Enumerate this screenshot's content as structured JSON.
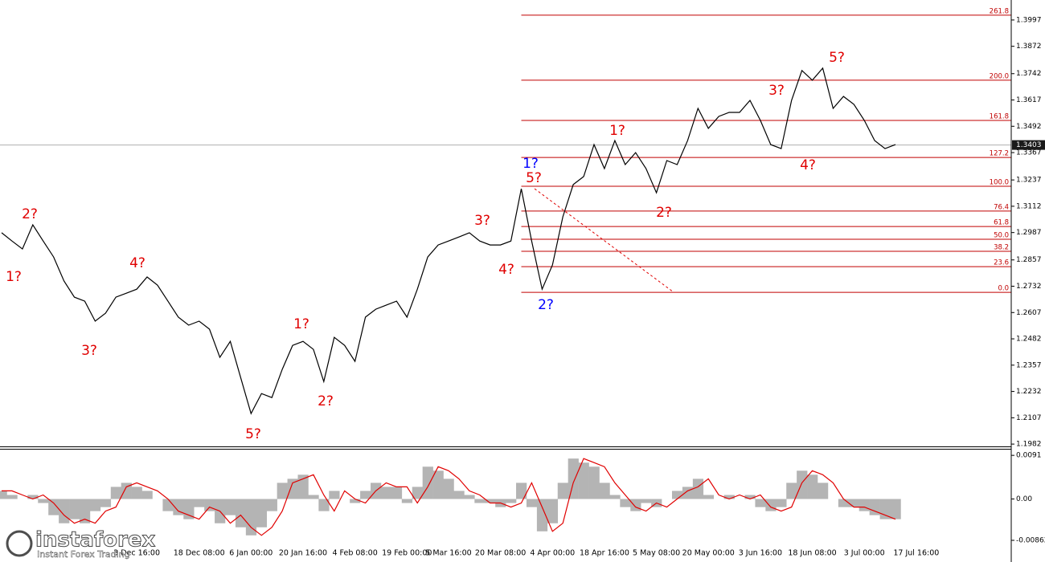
{
  "chart_data": [
    {
      "type": "line",
      "color": "#000000",
      "categories": [
        null,
        null,
        null,
        null,
        null,
        null,
        null,
        null,
        null,
        null,
        null,
        null,
        null,
        "3 Dec 16:00",
        null,
        null,
        null,
        null,
        null,
        "18 Dec 08:00",
        null,
        null,
        null,
        null,
        "6 Jan 00:00",
        null,
        null,
        null,
        null,
        "20 Jan 16:00",
        null,
        null,
        null,
        null,
        "4 Feb 08:00",
        null,
        null,
        null,
        null,
        "19 Feb 00:00",
        null,
        null,
        null,
        "5 Mar 16:00",
        null,
        null,
        null,
        null,
        "20 Mar 08:00",
        null,
        null,
        null,
        null,
        "4 Apr 00:00",
        null,
        null,
        null,
        null,
        "18 Apr 16:00",
        null,
        null,
        null,
        null,
        "5 May 08:00",
        null,
        null,
        null,
        null,
        "20 May 00:00",
        null,
        null,
        null,
        null,
        "3 Jun 16:00",
        null,
        null,
        null,
        null,
        "18 Jun 08:00",
        null,
        null,
        null,
        null,
        "3 Jul 00:00",
        null,
        null,
        null,
        null,
        "17 Jul 16:00"
      ],
      "values": [
        1.2986,
        1.2947,
        1.2909,
        1.3024,
        1.2947,
        1.2871,
        1.2757,
        1.268,
        1.2661,
        1.2566,
        1.2604,
        1.268,
        1.2699,
        1.2718,
        1.2776,
        1.2737,
        1.2661,
        1.2585,
        1.2547,
        1.2566,
        1.2528,
        1.2394,
        1.247,
        1.2298,
        1.2127,
        1.2222,
        1.2203,
        1.2337,
        1.2451,
        1.247,
        1.2432,
        1.2279,
        1.2489,
        1.2451,
        1.2375,
        1.2585,
        1.2623,
        1.2642,
        1.2661,
        1.2585,
        1.2718,
        1.2871,
        1.2928,
        1.2947,
        1.2966,
        1.2986,
        1.2947,
        1.2928,
        1.2928,
        1.2947,
        1.3195,
        1.2947,
        1.2718,
        1.2833,
        1.3062,
        1.3215,
        1.3253,
        1.3405,
        1.3291,
        1.3424,
        1.331,
        1.3367,
        1.3291,
        1.3176,
        1.3329,
        1.331,
        1.3424,
        1.3577,
        1.3482,
        1.3539,
        1.3558,
        1.3558,
        1.3615,
        1.352,
        1.3405,
        1.3386,
        1.3615,
        1.3757,
        1.3711,
        1.3768,
        1.3577,
        1.3634,
        1.3596,
        1.352,
        1.3424,
        1.3386,
        1.3405,
        null,
        null
      ],
      "ylim": [
        1.1971,
        1.4092
      ],
      "yticks": [
        1.3997,
        1.3872,
        1.3742,
        1.3617,
        1.3492,
        1.3367,
        1.3237,
        1.3112,
        1.2987,
        1.2857,
        1.2732,
        1.2607,
        1.2482,
        1.2357,
        1.2232,
        1.2107,
        1.1982
      ],
      "last_price": {
        "value": 1.3403,
        "label": "1.3403"
      },
      "levels_color": "#c00000",
      "levels": [
        {
          "label": "261.8",
          "value": 1.402
        },
        {
          "label": "200.0",
          "value": 1.3711
        },
        {
          "label": "161.8",
          "value": 1.352
        },
        {
          "label": "127.2",
          "value": 1.3344
        },
        {
          "label": "100.0",
          "value": 1.3207
        },
        {
          "label": "76.4",
          "value": 1.3089
        },
        {
          "label": "61.8",
          "value": 1.3016
        },
        {
          "label": "50.0",
          "value": 1.2955
        },
        {
          "label": "38.2",
          "value": 1.2898
        },
        {
          "label": "23.6",
          "value": 1.2825
        },
        {
          "label": "0.0",
          "value": 1.2703
        }
      ],
      "annotations": [
        {
          "text": "1?",
          "color": "#e00000"
        },
        {
          "text": "2?",
          "color": "#e00000"
        },
        {
          "text": "3?",
          "color": "#e00000"
        },
        {
          "text": "4?",
          "color": "#e00000"
        },
        {
          "text": "5?",
          "color": "#e00000"
        },
        {
          "text": "1?",
          "color": "#e00000"
        },
        {
          "text": "2?",
          "color": "#e00000"
        },
        {
          "text": "3?",
          "color": "#e00000"
        },
        {
          "text": "4?",
          "color": "#e00000"
        },
        {
          "text": "1?",
          "color": "#0000ff"
        },
        {
          "text": "5?",
          "color": "#e00000"
        },
        {
          "text": "2?",
          "color": "#0000ff"
        },
        {
          "text": "1?",
          "color": "#e00000"
        },
        {
          "text": "2?",
          "color": "#e00000"
        },
        {
          "text": "3?",
          "color": "#e00000"
        },
        {
          "text": "4?",
          "color": "#e00000"
        },
        {
          "text": "5?",
          "color": "#e00000"
        }
      ]
    },
    {
      "type": "histogram",
      "color": "#b4b4b4",
      "signal_color": "#e00000",
      "values": [
        0.00169,
        0.00084,
        0,
        0.00084,
        -0.00084,
        -0.00337,
        -0.00506,
        -0.00421,
        -0.00506,
        -0.00253,
        -0.00169,
        0.00253,
        0.00337,
        0.00253,
        0.00169,
        0,
        -0.00253,
        -0.00337,
        -0.00421,
        -0.00169,
        -0.00253,
        -0.00506,
        -0.00337,
        -0.0059,
        -0.00758,
        -0.0059,
        -0.00253,
        0.00337,
        0.00421,
        0.00506,
        0.00084,
        -0.00253,
        0.00169,
        0,
        -0.00084,
        0.00169,
        0.00337,
        0.00253,
        0.00253,
        -0.00084,
        0.00253,
        0.00674,
        0.0059,
        0.00421,
        0.00169,
        0.00084,
        -0.00084,
        -0.00084,
        -0.00169,
        -0.00084,
        0.00337,
        -0.00169,
        -0.00674,
        -0.00506,
        0.00337,
        0.00843,
        0.00758,
        0.00674,
        0.00337,
        0.00084,
        -0.00169,
        -0.00253,
        -0.00084,
        -0.00169,
        0,
        0.00169,
        0.00253,
        0.00421,
        0.00084,
        0,
        0.00084,
        0,
        0.00084,
        -0.00169,
        -0.00253,
        -0.00169,
        0.00337,
        0.0059,
        0.00506,
        0.00337,
        0,
        -0.00169,
        -0.00169,
        -0.00253,
        -0.00337,
        -0.00421,
        -0.00421
      ],
      "signal_values": [
        0.00169,
        0.00169,
        0.00084,
        0,
        0.00084,
        -0.00084,
        -0.00337,
        -0.00506,
        -0.00421,
        -0.00506,
        -0.00253,
        -0.00169,
        0.00253,
        0.00337,
        0.00253,
        0.00169,
        0,
        -0.00253,
        -0.00337,
        -0.00421,
        -0.00169,
        -0.00253,
        -0.00506,
        -0.00337,
        -0.0059,
        -0.00758,
        -0.0059,
        -0.00253,
        0.00337,
        0.00421,
        0.00506,
        0.00084,
        -0.00253,
        0.00169,
        0,
        -0.00084,
        0.00169,
        0.00337,
        0.00253,
        0.00253,
        -0.00084,
        0.00253,
        0.00674,
        0.0059,
        0.00421,
        0.00169,
        0.00084,
        -0.00084,
        -0.00084,
        -0.00169,
        -0.00084,
        0.00337,
        -0.00169,
        -0.00674,
        -0.00506,
        0.00337,
        0.00843,
        0.00758,
        0.00674,
        0.00337,
        0.00084,
        -0.00169,
        -0.00253,
        -0.00084,
        -0.00169,
        0,
        0.00169,
        0.00253,
        0.00421,
        0.00084,
        0,
        0.00084,
        0,
        0.00084,
        -0.00169,
        -0.00253,
        -0.00169,
        0.00337,
        0.0059,
        0.00506,
        0.00337,
        0,
        -0.00169,
        -0.00169,
        -0.00253,
        -0.00337,
        -0.00421
      ],
      "ylim": [
        -0.0118,
        0.0103
      ],
      "yticks": [
        0.0091,
        {
          "value": 0,
          "label": "0.00"
        },
        -0.00862
      ]
    }
  ],
  "watermark": {
    "brand": "instaforex",
    "tagline": "Instant Forex Trading"
  }
}
